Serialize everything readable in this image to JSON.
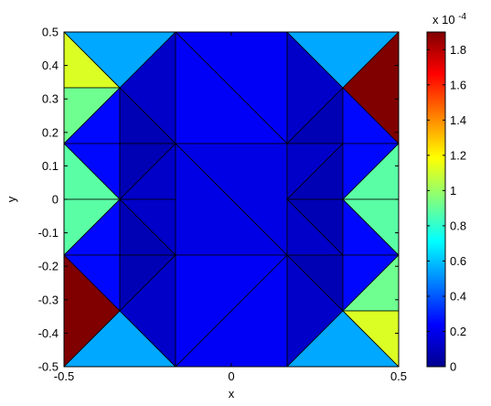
{
  "chart_data": {
    "type": "heatmap",
    "subtype": "triangular-mesh-patch",
    "xlabel": "x",
    "ylabel": "y",
    "xlim": [
      -0.5,
      0.5
    ],
    "ylim": [
      -0.5,
      0.5
    ],
    "x_ticks": [
      -0.5,
      0,
      0.5
    ],
    "x_tick_labels": [
      "-0.5",
      "0",
      "0.5"
    ],
    "y_ticks": [
      0.5,
      0.4,
      0.3,
      0.2,
      0.1,
      0,
      -0.1,
      -0.2,
      -0.3,
      -0.4,
      -0.5
    ],
    "y_tick_labels": [
      "0.5",
      "0.4",
      "0.3",
      "0.2",
      "0.1",
      "0",
      "-0.1",
      "-0.2",
      "-0.3",
      "-0.4",
      "-0.5"
    ],
    "grid": false,
    "colormap": "jet",
    "colorbar": {
      "min": 0,
      "max": 0.00019,
      "exponent_label": "x 10",
      "exponent_power": "-4",
      "ticks": [
        0,
        0.2,
        0.4,
        0.6,
        0.8,
        1,
        1.2,
        1.4,
        1.6,
        1.8
      ],
      "tick_labels": [
        "0",
        "0.2",
        "0.4",
        "0.6",
        "0.8",
        "1",
        "1.2",
        "1.4",
        "1.6",
        "1.8"
      ],
      "colors": [
        "#00008f",
        "#0000ff",
        "#00ffff",
        "#ffff00",
        "#ff0000",
        "#800000"
      ]
    },
    "triangles": [
      {
        "vertices": [
          [
            -0.5,
            0.5
          ],
          [
            -0.1667,
            0.5
          ],
          [
            -0.3333,
            0.3333
          ]
        ],
        "value": 5.5e-05
      },
      {
        "vertices": [
          [
            -0.5,
            0.5
          ],
          [
            -0.3333,
            0.3333
          ],
          [
            -0.5,
            0.3333
          ]
        ],
        "value": 0.000112
      },
      {
        "vertices": [
          [
            -0.5,
            0.3333
          ],
          [
            -0.3333,
            0.3333
          ],
          [
            -0.5,
            0.1667
          ]
        ],
        "value": 9.2e-05
      },
      {
        "vertices": [
          [
            -0.5,
            0.1667
          ],
          [
            -0.3333,
            0.3333
          ],
          [
            -0.3333,
            0.1667
          ]
        ],
        "value": 2.5e-05
      },
      {
        "vertices": [
          [
            -0.3333,
            0.3333
          ],
          [
            -0.1667,
            0.5
          ],
          [
            -0.1667,
            0.1667
          ]
        ],
        "value": 1.2e-05
      },
      {
        "vertices": [
          [
            -0.3333,
            0.3333
          ],
          [
            -0.1667,
            0.1667
          ],
          [
            -0.3333,
            0.1667
          ]
        ],
        "value": 8e-06
      },
      {
        "vertices": [
          [
            -0.1667,
            0.5
          ],
          [
            0.1667,
            0.5
          ],
          [
            0.1667,
            0.1667
          ]
        ],
        "value": 2.2e-05
      },
      {
        "vertices": [
          [
            -0.1667,
            0.5
          ],
          [
            0.1667,
            0.1667
          ],
          [
            -0.1667,
            0.1667
          ]
        ],
        "value": 2.2e-05
      },
      {
        "vertices": [
          [
            0.1667,
            0.5
          ],
          [
            0.3333,
            0.3333
          ],
          [
            0.1667,
            0.1667
          ]
        ],
        "value": 1.2e-05
      },
      {
        "vertices": [
          [
            0.1667,
            0.1667
          ],
          [
            0.3333,
            0.3333
          ],
          [
            0.3333,
            0.1667
          ]
        ],
        "value": 8e-06
      },
      {
        "vertices": [
          [
            0.1667,
            0.5
          ],
          [
            0.5,
            0.5
          ],
          [
            0.3333,
            0.3333
          ]
        ],
        "value": 5.5e-05
      },
      {
        "vertices": [
          [
            0.3333,
            0.3333
          ],
          [
            0.5,
            0.5
          ],
          [
            0.5,
            0.1667
          ]
        ],
        "value": 0.00019
      },
      {
        "vertices": [
          [
            0.3333,
            0.3333
          ],
          [
            0.5,
            0.1667
          ],
          [
            0.3333,
            0.1667
          ]
        ],
        "value": 2.5e-05
      },
      {
        "vertices": [
          [
            -0.5,
            0.1667
          ],
          [
            -0.3333,
            0.1667
          ],
          [
            -0.3333,
            0
          ]
        ],
        "value": 2.5e-05
      },
      {
        "vertices": [
          [
            -0.5,
            0.1667
          ],
          [
            -0.3333,
            0
          ],
          [
            -0.5,
            0
          ]
        ],
        "value": 8.8e-05
      },
      {
        "vertices": [
          [
            -0.5,
            0
          ],
          [
            -0.3333,
            0
          ],
          [
            -0.5,
            -0.1667
          ]
        ],
        "value": 8.8e-05
      },
      {
        "vertices": [
          [
            -0.3333,
            0
          ],
          [
            -0.3333,
            -0.1667
          ],
          [
            -0.5,
            -0.1667
          ]
        ],
        "value": 2.5e-05
      },
      {
        "vertices": [
          [
            -0.3333,
            0.1667
          ],
          [
            -0.1667,
            0.1667
          ],
          [
            -0.3333,
            0
          ]
        ],
        "value": 8e-06
      },
      {
        "vertices": [
          [
            -0.1667,
            0.1667
          ],
          [
            -0.1667,
            0
          ],
          [
            -0.3333,
            0
          ]
        ],
        "value": 1.2e-05
      },
      {
        "vertices": [
          [
            -0.3333,
            0
          ],
          [
            -0.1667,
            0
          ],
          [
            -0.1667,
            -0.1667
          ]
        ],
        "value": 1.2e-05
      },
      {
        "vertices": [
          [
            -0.3333,
            0
          ],
          [
            -0.1667,
            -0.1667
          ],
          [
            -0.3333,
            -0.1667
          ]
        ],
        "value": 8e-06
      },
      {
        "vertices": [
          [
            -0.1667,
            0.1667
          ],
          [
            0.1667,
            0.1667
          ],
          [
            0.1667,
            -0.1667
          ]
        ],
        "value": 1.8e-05
      },
      {
        "vertices": [
          [
            -0.1667,
            0.1667
          ],
          [
            0.1667,
            -0.1667
          ],
          [
            -0.1667,
            -0.1667
          ]
        ],
        "value": 1.8e-05
      },
      {
        "vertices": [
          [
            0.1667,
            0.1667
          ],
          [
            0.3333,
            0.1667
          ],
          [
            0.1667,
            0
          ]
        ],
        "value": 1.2e-05
      },
      {
        "vertices": [
          [
            0.3333,
            0.1667
          ],
          [
            0.3333,
            0
          ],
          [
            0.1667,
            0
          ]
        ],
        "value": 8e-06
      },
      {
        "vertices": [
          [
            0.1667,
            0
          ],
          [
            0.3333,
            0
          ],
          [
            0.3333,
            -0.1667
          ]
        ],
        "value": 8e-06
      },
      {
        "vertices": [
          [
            0.1667,
            0
          ],
          [
            0.3333,
            -0.1667
          ],
          [
            0.1667,
            -0.1667
          ]
        ],
        "value": 1.2e-05
      },
      {
        "vertices": [
          [
            0.3333,
            0.1667
          ],
          [
            0.5,
            0.1667
          ],
          [
            0.3333,
            0
          ]
        ],
        "value": 2.5e-05
      },
      {
        "vertices": [
          [
            0.5,
            0.1667
          ],
          [
            0.5,
            0
          ],
          [
            0.3333,
            0
          ]
        ],
        "value": 8.8e-05
      },
      {
        "vertices": [
          [
            0.3333,
            0
          ],
          [
            0.5,
            0
          ],
          [
            0.5,
            -0.1667
          ]
        ],
        "value": 8.8e-05
      },
      {
        "vertices": [
          [
            0.3333,
            0
          ],
          [
            0.5,
            -0.1667
          ],
          [
            0.3333,
            -0.1667
          ]
        ],
        "value": 2.5e-05
      },
      {
        "vertices": [
          [
            -0.5,
            -0.1667
          ],
          [
            -0.3333,
            -0.1667
          ],
          [
            -0.3333,
            -0.3333
          ]
        ],
        "value": 2.5e-05
      },
      {
        "vertices": [
          [
            -0.5,
            -0.1667
          ],
          [
            -0.3333,
            -0.3333
          ],
          [
            -0.5,
            -0.5
          ]
        ],
        "value": 0.00019
      },
      {
        "vertices": [
          [
            -0.5,
            -0.5
          ],
          [
            -0.3333,
            -0.3333
          ],
          [
            -0.1667,
            -0.5
          ]
        ],
        "value": 5.5e-05
      },
      {
        "vertices": [
          [
            -0.3333,
            -0.1667
          ],
          [
            -0.1667,
            -0.1667
          ],
          [
            -0.3333,
            -0.3333
          ]
        ],
        "value": 8e-06
      },
      {
        "vertices": [
          [
            -0.1667,
            -0.1667
          ],
          [
            -0.1667,
            -0.5
          ],
          [
            -0.3333,
            -0.3333
          ]
        ],
        "value": 1.2e-05
      },
      {
        "vertices": [
          [
            -0.1667,
            -0.1667
          ],
          [
            0.1667,
            -0.1667
          ],
          [
            -0.1667,
            -0.5
          ]
        ],
        "value": 2.2e-05
      },
      {
        "vertices": [
          [
            0.1667,
            -0.1667
          ],
          [
            0.1667,
            -0.5
          ],
          [
            -0.1667,
            -0.5
          ]
        ],
        "value": 2.2e-05
      },
      {
        "vertices": [
          [
            0.1667,
            -0.1667
          ],
          [
            0.3333,
            -0.1667
          ],
          [
            0.3333,
            -0.3333
          ]
        ],
        "value": 8e-06
      },
      {
        "vertices": [
          [
            0.1667,
            -0.1667
          ],
          [
            0.3333,
            -0.3333
          ],
          [
            0.1667,
            -0.5
          ]
        ],
        "value": 1.2e-05
      },
      {
        "vertices": [
          [
            0.3333,
            -0.1667
          ],
          [
            0.5,
            -0.1667
          ],
          [
            0.3333,
            -0.3333
          ]
        ],
        "value": 2.5e-05
      },
      {
        "vertices": [
          [
            0.5,
            -0.1667
          ],
          [
            0.5,
            -0.3333
          ],
          [
            0.3333,
            -0.3333
          ]
        ],
        "value": 9.2e-05
      },
      {
        "vertices": [
          [
            0.3333,
            -0.3333
          ],
          [
            0.5,
            -0.3333
          ],
          [
            0.5,
            -0.5
          ]
        ],
        "value": 0.000112
      },
      {
        "vertices": [
          [
            0.3333,
            -0.3333
          ],
          [
            0.5,
            -0.5
          ],
          [
            0.1667,
            -0.5
          ]
        ],
        "value": 5.5e-05
      }
    ]
  }
}
